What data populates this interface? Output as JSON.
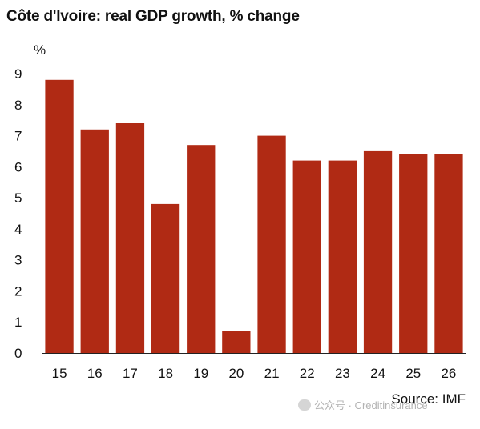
{
  "chart_data": {
    "type": "bar",
    "title": "Côte d'Ivoire: real GDP growth, % change",
    "ylabel": "%",
    "xlabel": "",
    "categories": [
      "15",
      "16",
      "17",
      "18",
      "19",
      "20",
      "21",
      "22",
      "23",
      "24",
      "25",
      "26"
    ],
    "values": [
      8.8,
      7.2,
      7.4,
      4.8,
      6.7,
      0.7,
      7.0,
      6.2,
      6.2,
      6.5,
      6.4,
      6.4
    ],
    "ylim": [
      0,
      9
    ],
    "yticks": [
      "0",
      "1",
      "2",
      "3",
      "4",
      "5",
      "6",
      "7",
      "8",
      "9"
    ],
    "grid": false,
    "legend": "none",
    "bar_color": "#b02a14",
    "source": "Source: IMF"
  },
  "watermark": {
    "text": "公众号 · Creditinsurance",
    "icon": "wechat-icon"
  }
}
